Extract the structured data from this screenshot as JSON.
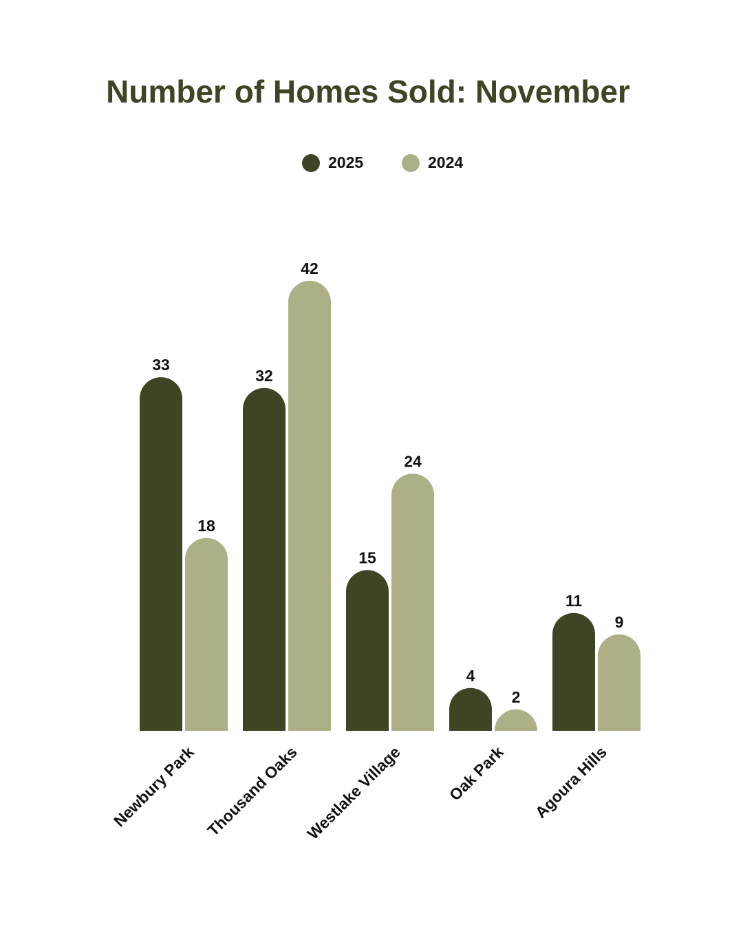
{
  "chart_data": {
    "type": "bar",
    "title": "Number of Homes Sold: November",
    "categories": [
      "Newbury Park",
      "Thousand Oaks",
      "Westlake Village",
      "Oak Park",
      "Agoura Hills"
    ],
    "series": [
      {
        "name": "2025",
        "color": "#3f4524",
        "values": [
          33,
          32,
          15,
          4,
          11
        ]
      },
      {
        "name": "2024",
        "color": "#adaf87",
        "values": [
          18,
          42,
          24,
          2,
          9
        ]
      }
    ]
  }
}
